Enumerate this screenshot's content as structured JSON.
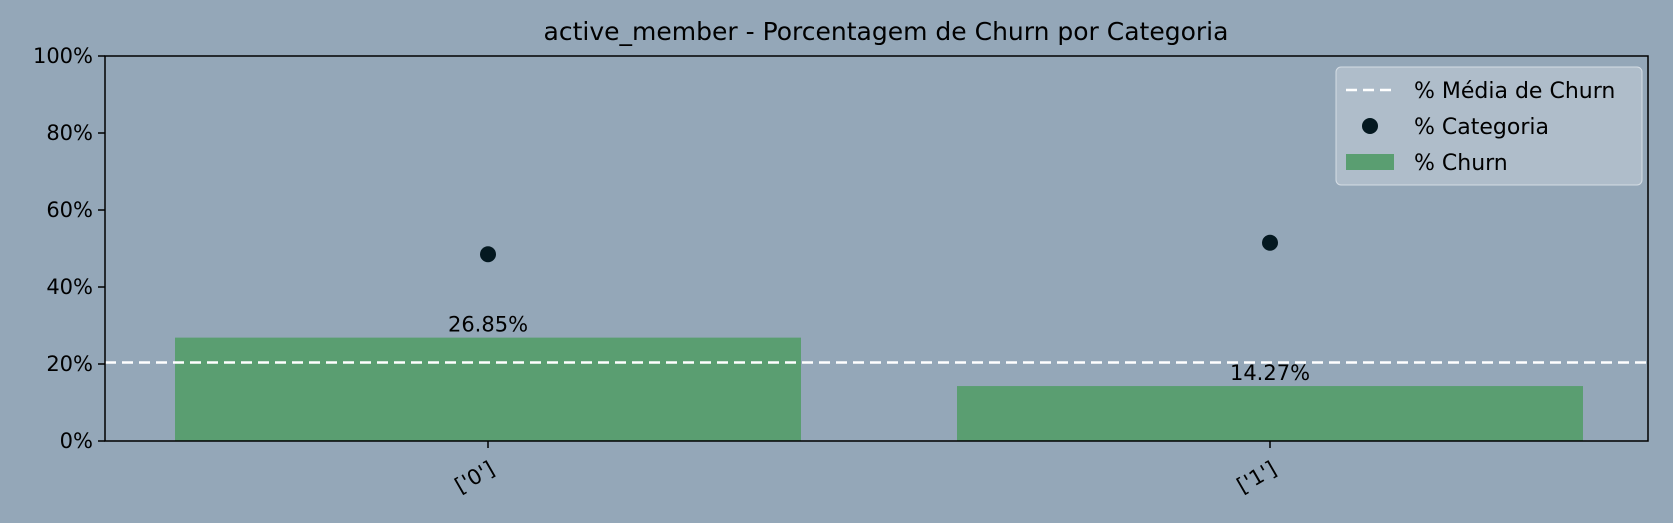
{
  "chart_data": {
    "type": "bar",
    "title": "active_member - Porcentagem de Churn por Categoria",
    "xlabel": "",
    "ylabel": "",
    "categories": [
      "['0']",
      "['1']"
    ],
    "series": [
      {
        "name": "% Churn",
        "type": "bar",
        "values": [
          26.85,
          14.27
        ],
        "labels": [
          "26.85%",
          "14.27%"
        ],
        "color": "#5a9e71"
      },
      {
        "name": "% Categoria",
        "type": "scatter",
        "values": [
          48.5,
          51.5
        ],
        "color": "#041820"
      },
      {
        "name": "% Média de Churn",
        "type": "hline",
        "value": 20.4,
        "color": "#ffffff",
        "style": "dashed"
      }
    ],
    "ylim": [
      0,
      100
    ],
    "yticks": [
      0,
      20,
      40,
      60,
      80,
      100
    ],
    "ytick_labels": [
      "0%",
      "20%",
      "40%",
      "60%",
      "80%",
      "100%"
    ],
    "grid": false,
    "legend_placement": "top-right",
    "background_color": "#94a7b8",
    "legend_background": "#b4c1cd"
  }
}
